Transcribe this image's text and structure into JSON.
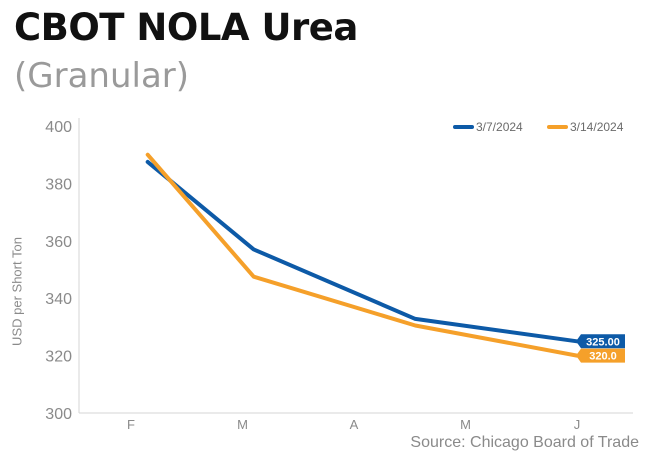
{
  "header": {
    "title": "CBOT NOLA Urea",
    "subtitle": "(Granular)"
  },
  "source": "Source: Chicago Board of Trade",
  "chart_data": {
    "type": "line",
    "title": "CBOT NOLA Urea",
    "subtitle": "(Granular)",
    "ylabel": "USD per Short Ton",
    "xlabel": "",
    "categories": [
      "F",
      "M",
      "A",
      "M",
      "J"
    ],
    "ylim": [
      300,
      400
    ],
    "yticks": [
      300,
      320,
      340,
      360,
      380,
      400
    ],
    "grid": false,
    "legend_position": "top-right",
    "series": [
      {
        "name": "3/7/2024",
        "color": "#0d5aa7",
        "x": [
          0.15,
          1.1,
          2.55,
          4.0
        ],
        "values": [
          387.5,
          357,
          332.8,
          325.0
        ],
        "end_label": "325.00"
      },
      {
        "name": "3/14/2024",
        "color": "#f5a02a",
        "x": [
          0.15,
          1.1,
          2.55,
          4.0
        ],
        "values": [
          390,
          347.5,
          330.5,
          320.0
        ],
        "end_label": "320.0"
      }
    ]
  }
}
